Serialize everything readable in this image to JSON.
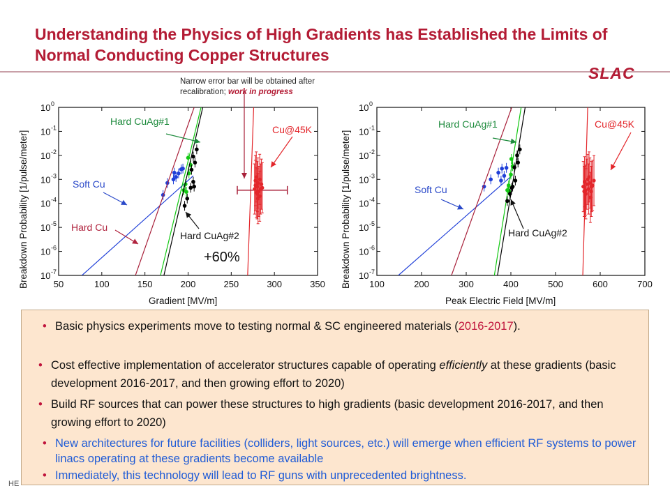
{
  "title": "Understanding the Physics of High Gradients has Established the Limits of Normal Conducting Copper Structures",
  "logo_text": "SLAC",
  "note": {
    "line1": "Narrow error bar will be obtained after",
    "line2_plain": "recalibration; ",
    "line2_emph": "work in progress"
  },
  "chart_data": [
    {
      "type": "scatter",
      "xlabel": "Gradient  [MV/m]",
      "ylabel": "Breakdown Probability [1/pulse/meter]",
      "xlim": [
        50,
        350
      ],
      "ylim_log10": [
        -7,
        0
      ],
      "xticks": [
        "50",
        "100",
        "150",
        "200",
        "250",
        "300",
        "350"
      ],
      "yticks": [
        "10",
        "10",
        "10",
        "10",
        "10",
        "10",
        "10",
        "10"
      ],
      "ytick_exponents": [
        "0",
        "-1",
        "-2",
        "-3",
        "-4",
        "-5",
        "-6",
        "-7"
      ],
      "series": [
        {
          "name": "Soft Cu",
          "color": "#1f3fd8",
          "line": [
            [
              77,
              -7
            ],
            [
              206,
              -2.85
            ]
          ],
          "points": [
            [
              171,
              -3.65
            ],
            [
              176,
              -3.15
            ],
            [
              184,
              -2.72
            ],
            [
              189,
              -2.75
            ],
            [
              192,
              -2.58
            ],
            [
              194,
              -2.55
            ],
            [
              186,
              -2.9
            ],
            [
              183,
              -3.0
            ]
          ]
        },
        {
          "name": "Hard Cu",
          "color": "#a8203a",
          "line": [
            [
              139,
              -7
            ],
            [
              207,
              0
            ]
          ],
          "points": []
        },
        {
          "name": "Hard CuAg#1",
          "color": "#12c812",
          "line": [
            [
              168,
              -7
            ],
            [
              215,
              0
            ]
          ],
          "points": [
            [
              195,
              -3.45
            ],
            [
              198,
              -3.52
            ],
            [
              201,
              -2.75
            ],
            [
              203,
              -2.4
            ],
            [
              200,
              -2.1
            ],
            [
              197,
              -3.2
            ]
          ]
        },
        {
          "name": "Hard CuAg#2",
          "color": "#000000",
          "line": [
            [
              172,
              -7
            ],
            [
              217,
              0
            ]
          ],
          "points": [
            [
              196,
              -4.1
            ],
            [
              199,
              -3.8
            ],
            [
              203,
              -3.35
            ],
            [
              206,
              -3.1
            ],
            [
              204,
              -2.6
            ],
            [
              208,
              -2.3
            ],
            [
              206,
              -2.05
            ],
            [
              210,
              -1.75
            ],
            [
              207,
              -3.3
            ]
          ]
        },
        {
          "name": "Cu@45K",
          "color": "#e3262b",
          "line": [
            [
              269,
              -7
            ],
            [
              276,
              0
            ]
          ],
          "points": [
            [
              277,
              -3.4
            ],
            [
              278,
              -3.25
            ],
            [
              279,
              -3.55
            ],
            [
              280,
              -3.3
            ],
            [
              281,
              -3.15
            ],
            [
              282,
              -3.5
            ],
            [
              283,
              -3.0
            ],
            [
              284,
              -3.4
            ],
            [
              285,
              -3.2
            ],
            [
              279,
              -2.9
            ],
            [
              281,
              -3.8
            ],
            [
              283,
              -3.7
            ],
            [
              286,
              -3.35
            ],
            [
              278,
              -3.05
            ],
            [
              280,
              -3.6
            ]
          ],
          "hbar": [
            257,
            315
          ],
          "hbar_y": -3.45
        }
      ],
      "annotations": [
        {
          "text": "Hard CuAg#1",
          "color": "green"
        },
        {
          "text": "Cu@45K",
          "color": "red"
        },
        {
          "text": "Soft Cu",
          "color": "blue"
        },
        {
          "text": "Hard Cu",
          "color": "darkred"
        },
        {
          "text": "Hard CuAg#2",
          "color": "black"
        },
        {
          "text": "+60%",
          "color": "black"
        }
      ]
    },
    {
      "type": "scatter",
      "xlabel": "Peak Electric Field [MV/m]",
      "ylabel": "Breakdown Probability [1/pulse/meter]",
      "xlim": [
        100,
        700
      ],
      "ylim_log10": [
        -7,
        0
      ],
      "xticks": [
        "100",
        "200",
        "300",
        "400",
        "500",
        "600",
        "700"
      ],
      "yticks": [
        "10",
        "10",
        "10",
        "10",
        "10",
        "10",
        "10",
        "10"
      ],
      "ytick_exponents": [
        "0",
        "-1",
        "-2",
        "-3",
        "-4",
        "-5",
        "-6",
        "-7"
      ],
      "series": [
        {
          "name": "Soft Cu",
          "color": "#1f3fd8",
          "line": [
            [
              148,
              -7
            ],
            [
              402,
              -2.85
            ]
          ],
          "points": [
            [
              340,
              -3.3
            ],
            [
              355,
              -3.0
            ],
            [
              372,
              -2.72
            ],
            [
              380,
              -2.55
            ],
            [
              390,
              -2.52
            ],
            [
              385,
              -2.85
            ],
            [
              378,
              -3.05
            ]
          ]
        },
        {
          "name": "Hard Cu",
          "color": "#a8203a",
          "line": [
            [
              267,
              -7
            ],
            [
              402,
              0
            ]
          ],
          "points": []
        },
        {
          "name": "Hard CuAg#1",
          "color": "#12c812",
          "line": [
            [
              363,
              -7
            ],
            [
              423,
              0
            ]
          ],
          "points": [
            [
              392,
              -3.45
            ],
            [
              396,
              -3.5
            ],
            [
              400,
              -2.8
            ],
            [
              404,
              -2.45
            ],
            [
              401,
              -2.15
            ],
            [
              395,
              -3.25
            ]
          ]
        },
        {
          "name": "Hard CuAg#2",
          "color": "#000000",
          "line": [
            [
              370,
              -7
            ],
            [
              432,
              0
            ]
          ],
          "points": [
            [
              392,
              -3.9
            ],
            [
              398,
              -3.6
            ],
            [
              404,
              -3.3
            ],
            [
              410,
              -3.05
            ],
            [
              408,
              -2.5
            ],
            [
              416,
              -2.3
            ],
            [
              414,
              -2.0
            ],
            [
              420,
              -1.75
            ],
            [
              402,
              -3.35
            ]
          ]
        },
        {
          "name": "Cu@45K",
          "color": "#e3262b",
          "line": [
            [
              561,
              -7
            ],
            [
              572,
              0
            ]
          ],
          "points": [
            [
              562,
              -3.3
            ],
            [
              565,
              -3.1
            ],
            [
              567,
              -3.45
            ],
            [
              570,
              -3.2
            ],
            [
              572,
              -3.0
            ],
            [
              574,
              -3.4
            ],
            [
              577,
              -3.15
            ],
            [
              580,
              -3.5
            ],
            [
              583,
              -3.25
            ],
            [
              586,
              -3.05
            ],
            [
              568,
              -3.6
            ],
            [
              575,
              -2.9
            ],
            [
              581,
              -3.3
            ],
            [
              564,
              -3.5
            ],
            [
              578,
              -3.75
            ]
          ]
        }
      ],
      "annotations": [
        {
          "text": "Hard CuAg#1",
          "color": "green"
        },
        {
          "text": "Cu@45K",
          "color": "red"
        },
        {
          "text": "Soft Cu",
          "color": "blue"
        },
        {
          "text": "Hard CuAg#2",
          "color": "black"
        }
      ]
    }
  ],
  "bullets": [
    {
      "text": "Basic physics experiments move to testing normal & SC engineered materials (",
      "hl": "2016-2017",
      "tail": ")."
    },
    {
      "pre": "Cost effective implementation of accelerator structures capable of operating ",
      "em": "efficiently",
      "post": " at these gradients (basic development 2016-2017, and then growing effort to 2020)"
    },
    {
      "text": "Build RF sources that can power these structures to high gradients (basic development 2016-2017, and then growing effort to 2020)"
    },
    {
      "text": "New architectures for future facilities (colliders, light sources, etc.) will emerge when efficient RF systems to power linacs operating at these gradients become available"
    },
    {
      "text": "Immediately, this technology will lead to RF guns with unprecedented brightness."
    }
  ],
  "footer": "HE"
}
